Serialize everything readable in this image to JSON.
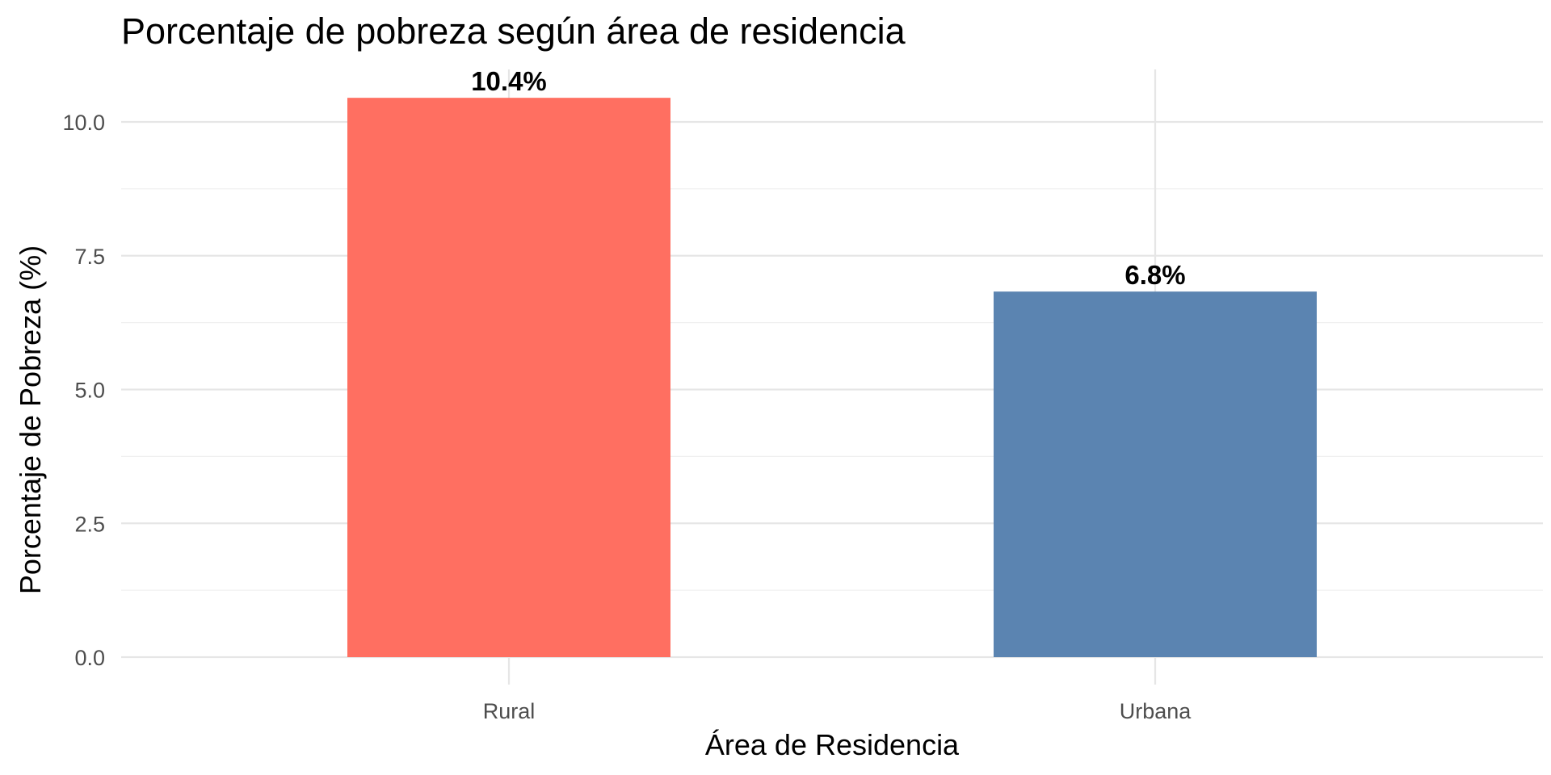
{
  "chart_data": {
    "type": "bar",
    "title": "Porcentaje de pobreza según área de residencia",
    "xlabel": "Área de Residencia",
    "ylabel": "Porcentaje de Pobreza (%)",
    "categories": [
      "Rural",
      "Urbana"
    ],
    "values": [
      10.45,
      6.83
    ],
    "value_labels": [
      "10.4%",
      "6.8%"
    ],
    "colors": [
      "#ff6f61",
      "#5b84b1"
    ],
    "ylim": [
      0,
      10.9
    ],
    "yticks": [
      0,
      2.5,
      5,
      7.5,
      10
    ],
    "ytick_labels": [
      "0.0",
      "2.5",
      "5.0",
      "7.5",
      "10.0"
    ],
    "grid": true,
    "legend": "none"
  }
}
